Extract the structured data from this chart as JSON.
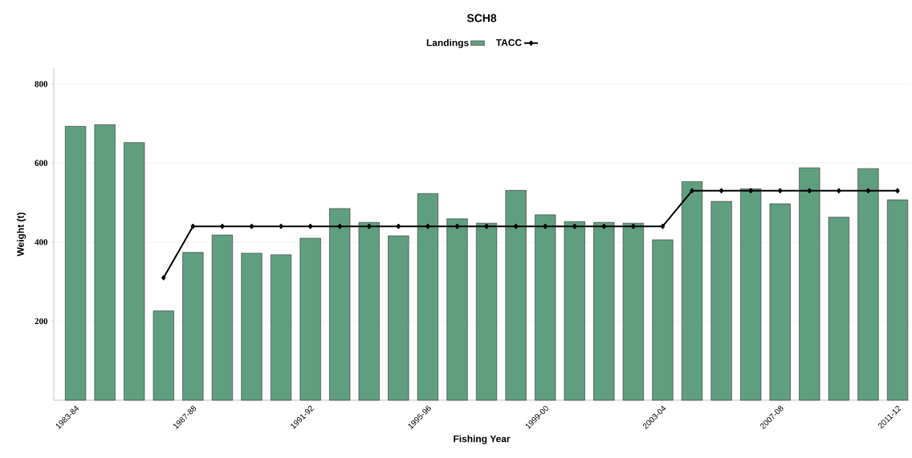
{
  "chart_data": {
    "type": "bar",
    "title": "SCH8",
    "xlabel": "Fishing Year",
    "ylabel": "Weight (t)",
    "categories": [
      "1983-84",
      null,
      null,
      null,
      "1987-88",
      null,
      null,
      null,
      "1991-92",
      null,
      null,
      null,
      "1995-96",
      null,
      null,
      null,
      "1999-00",
      null,
      null,
      null,
      "2003-04",
      null,
      null,
      null,
      "2007-08",
      null,
      null,
      null,
      "2011-12"
    ],
    "series": [
      {
        "name": "Landings",
        "color": "#5f9e7f",
        "values": [
          693,
          697,
          652,
          226,
          374,
          418,
          372,
          368,
          410,
          485,
          450,
          416,
          523,
          459,
          448,
          531,
          469,
          452,
          450,
          448,
          406,
          553,
          503,
          535,
          497,
          588,
          463,
          586,
          507
        ]
      },
      {
        "name": "TACC",
        "type": "line",
        "color": "#000000",
        "marker": "diamond",
        "values": [
          null,
          null,
          null,
          310,
          440,
          440,
          440,
          440,
          440,
          440,
          440,
          440,
          440,
          440,
          440,
          440,
          440,
          440,
          440,
          440,
          440,
          530,
          530,
          530,
          530,
          530,
          530,
          530,
          530
        ]
      }
    ],
    "ylim": [
      0,
      840
    ],
    "yticks": [
      200,
      400,
      600,
      800
    ],
    "grid": "y",
    "legend": "top"
  }
}
